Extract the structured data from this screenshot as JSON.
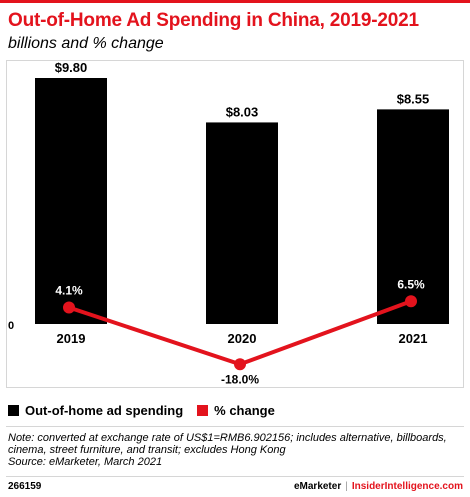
{
  "header": {
    "title": "Out-of-Home Ad Spending in China, 2019-2021",
    "subtitle": "billions and % change"
  },
  "chart_data": {
    "type": "bar",
    "categories": [
      "2019",
      "2020",
      "2021"
    ],
    "series": [
      {
        "name": "Out-of-home ad spending",
        "values": [
          9.8,
          8.03,
          8.55
        ],
        "labels": [
          "$9.80",
          "$8.03",
          "$8.55"
        ],
        "color": "#000000"
      },
      {
        "name": "% change",
        "type": "line",
        "values": [
          4.1,
          -18.0,
          6.5
        ],
        "labels": [
          "4.1%",
          "-18.0%",
          "6.5%"
        ],
        "color": "#e3131d"
      }
    ],
    "zero_label": "0",
    "grid": false,
    "legend_position": "bottom-left"
  },
  "notes": {
    "note": "Note: converted at exchange rate of US$1=RMB6.902156; includes alternative, billboards, cinema, street furniture, and transit; excludes Hong Kong",
    "source": "Source: eMarketer, March 2021"
  },
  "footer": {
    "chart_id": "266159",
    "brand": "eMarketer",
    "separator": "|",
    "brand2": "InsiderIntelligence.com"
  }
}
